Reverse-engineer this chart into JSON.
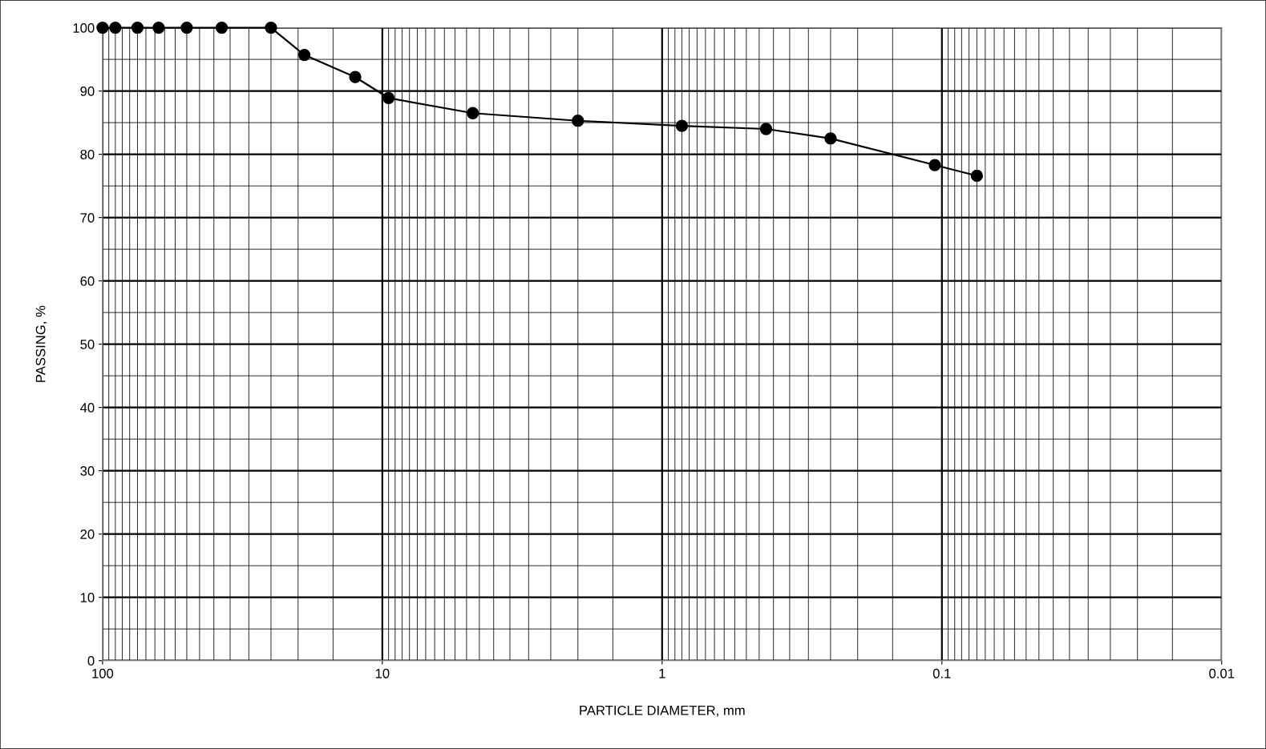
{
  "chart_data": {
    "type": "line",
    "xlabel": "PARTICLE DIAMETER, mm",
    "ylabel": "PASSING, %",
    "x": [
      100,
      90,
      75,
      63,
      50,
      37.5,
      25,
      19,
      12.5,
      9.5,
      4.75,
      2,
      0.85,
      0.425,
      0.25,
      0.106,
      0.075
    ],
    "series": [
      {
        "color": "#000000",
        "values": [
          100,
          100,
          100,
          100,
          100,
          100,
          100,
          95.7,
          92.2,
          88.9,
          86.5,
          85.3,
          84.5,
          84.0,
          82.5,
          78.3,
          76.6
        ]
      }
    ],
    "log": "x",
    "xlim": [
      100,
      0.01
    ],
    "xticks": [
      100,
      10,
      1,
      0.1,
      0.01
    ],
    "ylim": [
      0,
      100
    ],
    "yticks": [
      0,
      10,
      20,
      30,
      40,
      50,
      60,
      70,
      80,
      90,
      100
    ],
    "grid": true,
    "marker": "circle",
    "line_style": "solid"
  }
}
